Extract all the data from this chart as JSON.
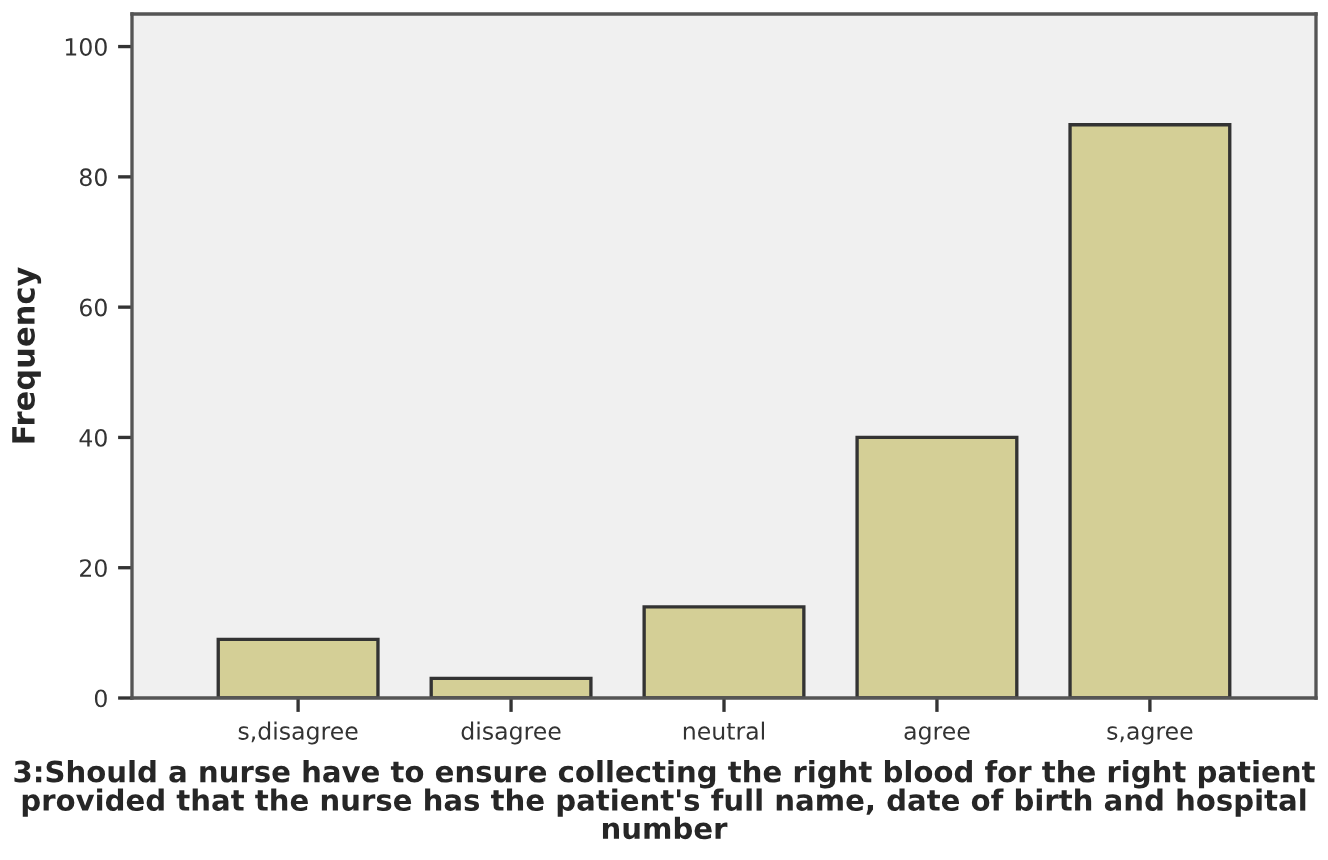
{
  "chart_data": {
    "type": "bar",
    "xlabel": "3:Should a nurse have to ensure collecting the right blood for the right patient provided that the nurse has the patient's full name, date of birth and hospital number",
    "ylabel": "Frequency",
    "categories": [
      "s,disagree",
      "disagree",
      "neutral",
      "agree",
      "s,agree"
    ],
    "values": [
      9,
      3,
      14,
      40,
      88
    ],
    "color": "#d4cf96",
    "ylim": [
      0,
      105
    ],
    "yticks": [
      0,
      20,
      40,
      60,
      80,
      100
    ],
    "grid": false
  }
}
